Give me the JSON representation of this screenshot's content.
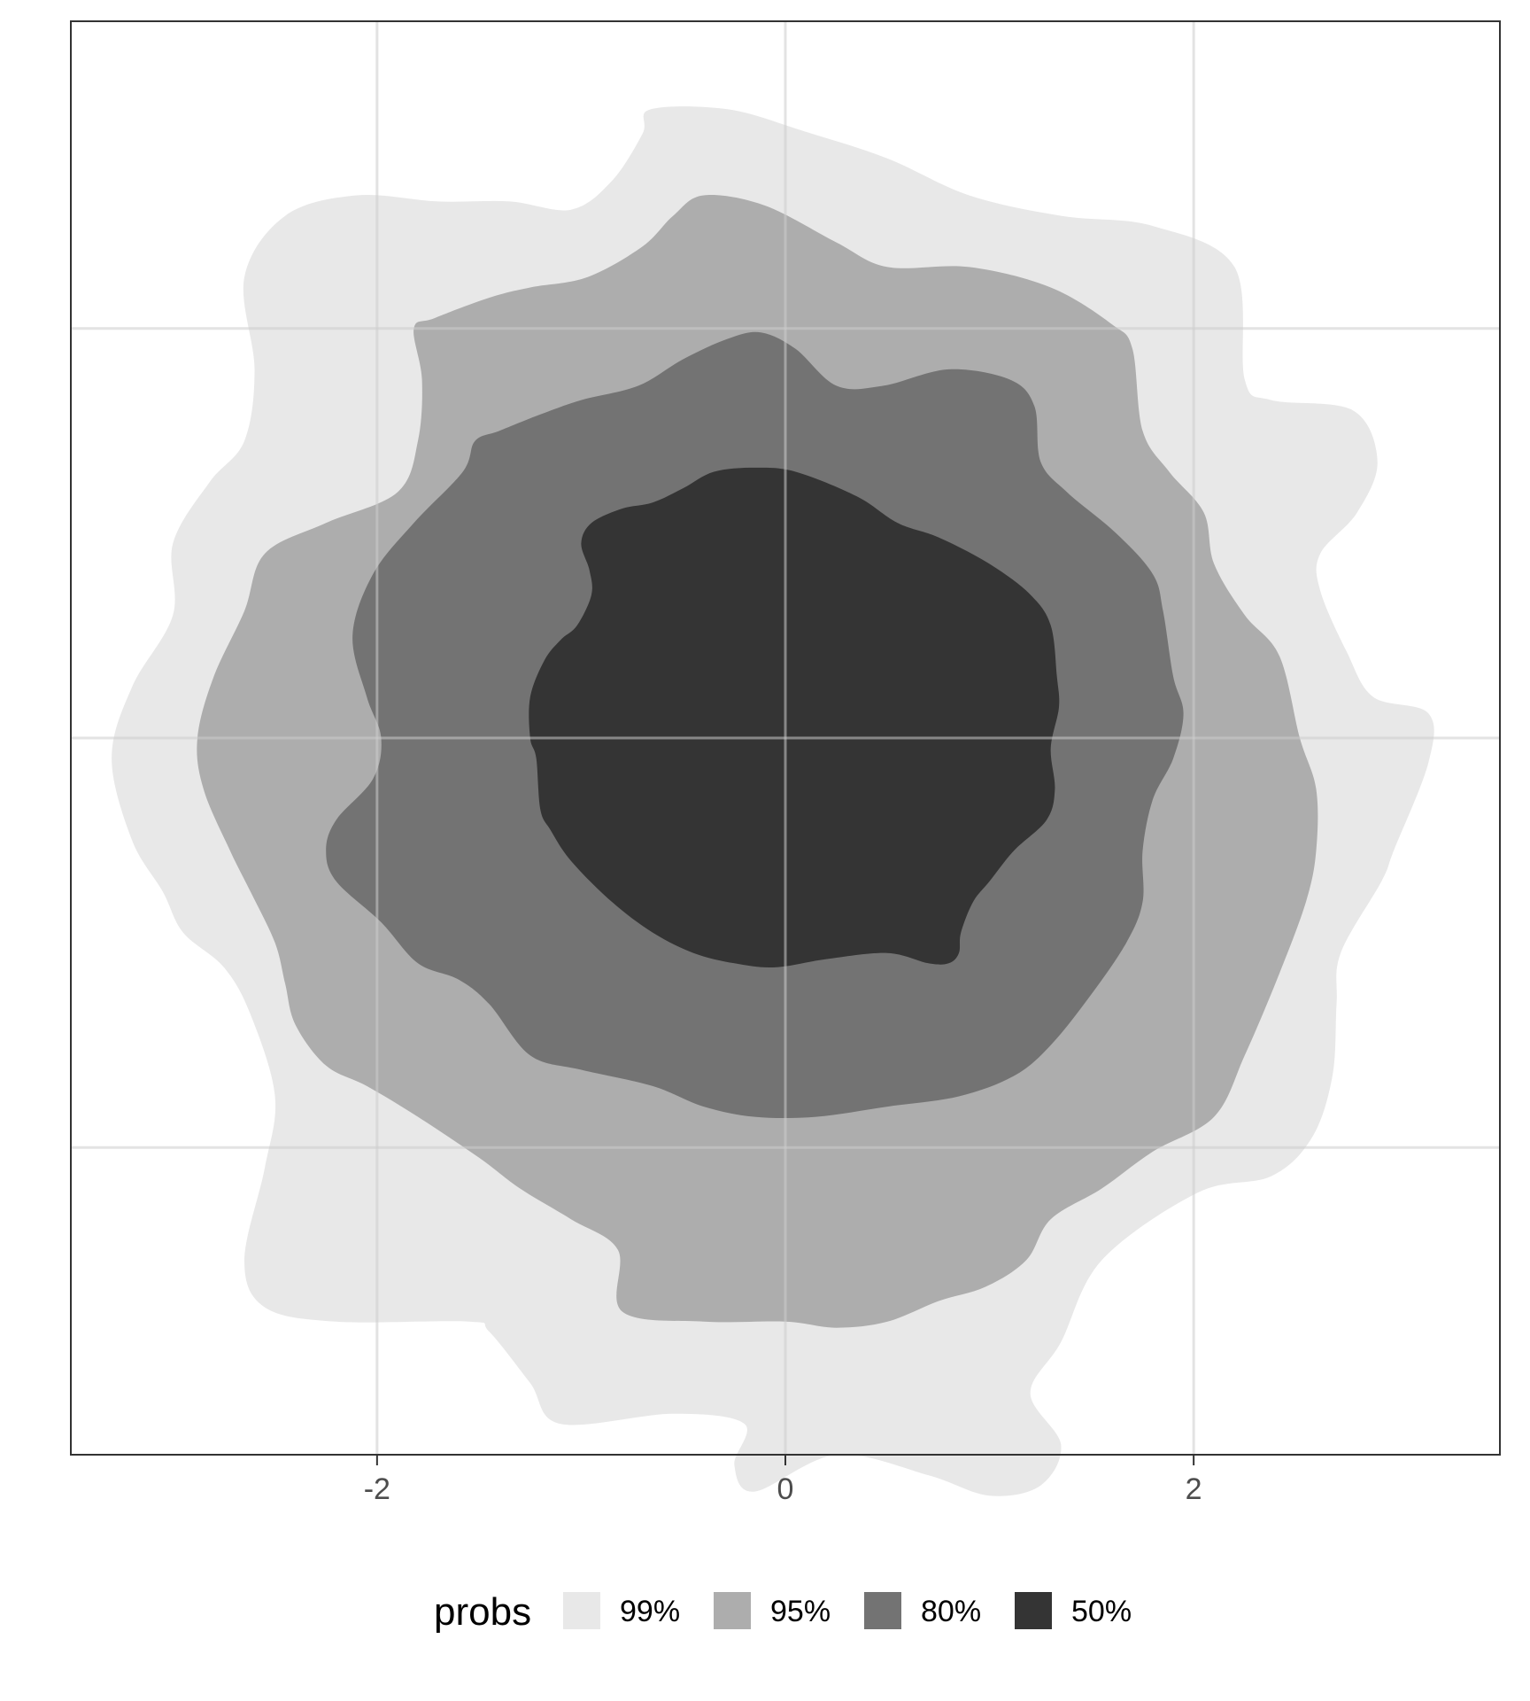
{
  "chart_data": {
    "type": "area",
    "title": "",
    "xlabel": "",
    "ylabel": "",
    "xlim": [
      -3.5,
      3.5
    ],
    "ylim": [
      -3.5,
      3.5
    ],
    "x_ticks": [
      {
        "value": -2,
        "label": "-2"
      },
      {
        "value": 0,
        "label": "0"
      },
      {
        "value": 2,
        "label": "2"
      }
    ],
    "y_gridlines": [
      -2,
      0,
      2
    ],
    "grid": true,
    "legend": {
      "title": "probs",
      "position": "bottom",
      "entries": [
        {
          "label": "99%",
          "color": "#e8e8e8"
        },
        {
          "label": "95%",
          "color": "#adadad"
        },
        {
          "label": "80%",
          "color": "#737373"
        },
        {
          "label": "50%",
          "color": "#343434"
        }
      ]
    },
    "series": [
      {
        "name": "99%",
        "color": "#e8e8e8",
        "polygon": [
          [
            -0.66,
            3.07
          ],
          [
            -0.28,
            3.07
          ],
          [
            0.1,
            2.96
          ],
          [
            0.5,
            2.83
          ],
          [
            0.9,
            2.65
          ],
          [
            1.35,
            2.55
          ],
          [
            1.8,
            2.5
          ],
          [
            2.2,
            2.3
          ],
          [
            2.25,
            1.75
          ],
          [
            2.38,
            1.65
          ],
          [
            2.78,
            1.6
          ],
          [
            2.9,
            1.35
          ],
          [
            2.8,
            1.1
          ],
          [
            2.62,
            0.9
          ],
          [
            2.62,
            0.72
          ],
          [
            2.75,
            0.42
          ],
          [
            2.88,
            0.2
          ],
          [
            3.15,
            0.12
          ],
          [
            3.15,
            -0.12
          ],
          [
            2.98,
            -0.55
          ],
          [
            2.92,
            -0.7
          ],
          [
            2.72,
            -1.05
          ],
          [
            2.7,
            -1.3
          ],
          [
            2.68,
            -1.65
          ],
          [
            2.58,
            -1.95
          ],
          [
            2.38,
            -2.14
          ],
          [
            2.02,
            -2.22
          ],
          [
            1.55,
            -2.55
          ],
          [
            1.35,
            -2.95
          ],
          [
            1.2,
            -3.2
          ],
          [
            1.35,
            -3.45
          ],
          [
            1.25,
            -3.65
          ],
          [
            1.0,
            -3.7
          ],
          [
            0.7,
            -3.6
          ],
          [
            0.25,
            -3.5
          ],
          [
            -0.15,
            -3.68
          ],
          [
            -0.25,
            -3.55
          ],
          [
            -0.2,
            -3.35
          ],
          [
            -0.55,
            -3.3
          ],
          [
            -1.1,
            -3.35
          ],
          [
            -1.25,
            -3.15
          ],
          [
            -1.45,
            -2.9
          ],
          [
            -1.55,
            -2.85
          ],
          [
            -2.2,
            -2.85
          ],
          [
            -2.55,
            -2.78
          ],
          [
            -2.65,
            -2.55
          ],
          [
            -2.55,
            -2.1
          ],
          [
            -2.5,
            -1.75
          ],
          [
            -2.62,
            -1.35
          ],
          [
            -2.75,
            -1.12
          ],
          [
            -2.95,
            -0.95
          ],
          [
            -3.05,
            -0.75
          ],
          [
            -3.2,
            -0.5
          ],
          [
            -3.3,
            -0.1
          ],
          [
            -3.2,
            0.25
          ],
          [
            -3.0,
            0.6
          ],
          [
            -3.0,
            0.95
          ],
          [
            -2.82,
            1.25
          ],
          [
            -2.65,
            1.45
          ],
          [
            -2.6,
            1.8
          ],
          [
            -2.65,
            2.25
          ],
          [
            -2.45,
            2.55
          ],
          [
            -2.1,
            2.65
          ],
          [
            -1.7,
            2.62
          ],
          [
            -1.35,
            2.62
          ],
          [
            -1.05,
            2.58
          ],
          [
            -0.85,
            2.72
          ],
          [
            -0.7,
            2.95
          ]
        ]
      },
      {
        "name": "95%",
        "color": "#adadad",
        "polygon": [
          [
            -0.4,
            2.65
          ],
          [
            -0.1,
            2.6
          ],
          [
            0.25,
            2.42
          ],
          [
            0.5,
            2.3
          ],
          [
            0.9,
            2.3
          ],
          [
            1.3,
            2.2
          ],
          [
            1.6,
            2.02
          ],
          [
            1.7,
            1.9
          ],
          [
            1.75,
            1.5
          ],
          [
            1.88,
            1.3
          ],
          [
            2.05,
            1.1
          ],
          [
            2.1,
            0.85
          ],
          [
            2.25,
            0.6
          ],
          [
            2.42,
            0.4
          ],
          [
            2.52,
            0.0
          ],
          [
            2.6,
            -0.25
          ],
          [
            2.6,
            -0.55
          ],
          [
            2.55,
            -0.8
          ],
          [
            2.42,
            -1.15
          ],
          [
            2.25,
            -1.55
          ],
          [
            2.1,
            -1.85
          ],
          [
            1.8,
            -2.02
          ],
          [
            1.55,
            -2.2
          ],
          [
            1.3,
            -2.35
          ],
          [
            1.18,
            -2.55
          ],
          [
            0.98,
            -2.68
          ],
          [
            0.75,
            -2.75
          ],
          [
            0.5,
            -2.85
          ],
          [
            0.25,
            -2.88
          ],
          [
            0.0,
            -2.85
          ],
          [
            -0.4,
            -2.85
          ],
          [
            -0.8,
            -2.8
          ],
          [
            -0.82,
            -2.5
          ],
          [
            -1.05,
            -2.35
          ],
          [
            -1.3,
            -2.2
          ],
          [
            -1.5,
            -2.05
          ],
          [
            -1.8,
            -1.85
          ],
          [
            -2.05,
            -1.7
          ],
          [
            -2.25,
            -1.6
          ],
          [
            -2.4,
            -1.4
          ],
          [
            -2.45,
            -1.2
          ],
          [
            -2.5,
            -1.0
          ],
          [
            -2.62,
            -0.75
          ],
          [
            -2.72,
            -0.55
          ],
          [
            -2.85,
            -0.25
          ],
          [
            -2.88,
            0.0
          ],
          [
            -2.8,
            0.3
          ],
          [
            -2.65,
            0.62
          ],
          [
            -2.55,
            0.9
          ],
          [
            -2.25,
            1.05
          ],
          [
            -1.9,
            1.2
          ],
          [
            -1.8,
            1.45
          ],
          [
            -1.78,
            1.75
          ],
          [
            -1.82,
            2.0
          ],
          [
            -1.72,
            2.05
          ],
          [
            -1.45,
            2.15
          ],
          [
            -1.25,
            2.2
          ],
          [
            -0.97,
            2.25
          ],
          [
            -0.7,
            2.4
          ],
          [
            -0.55,
            2.55
          ]
        ]
      },
      {
        "name": "80%",
        "color": "#737373",
        "polygon": [
          [
            -0.28,
            1.95
          ],
          [
            -0.12,
            1.98
          ],
          [
            0.05,
            1.9
          ],
          [
            0.25,
            1.72
          ],
          [
            0.48,
            1.72
          ],
          [
            0.8,
            1.8
          ],
          [
            1.1,
            1.75
          ],
          [
            1.22,
            1.62
          ],
          [
            1.25,
            1.35
          ],
          [
            1.38,
            1.2
          ],
          [
            1.62,
            1.0
          ],
          [
            1.8,
            0.8
          ],
          [
            1.85,
            0.62
          ],
          [
            1.9,
            0.3
          ],
          [
            1.95,
            0.12
          ],
          [
            1.9,
            -0.1
          ],
          [
            1.8,
            -0.3
          ],
          [
            1.75,
            -0.55
          ],
          [
            1.75,
            -0.8
          ],
          [
            1.67,
            -1.0
          ],
          [
            1.5,
            -1.25
          ],
          [
            1.3,
            -1.5
          ],
          [
            1.12,
            -1.65
          ],
          [
            0.85,
            -1.75
          ],
          [
            0.5,
            -1.8
          ],
          [
            0.15,
            -1.85
          ],
          [
            -0.15,
            -1.85
          ],
          [
            -0.4,
            -1.8
          ],
          [
            -0.65,
            -1.7
          ],
          [
            -1.0,
            -1.62
          ],
          [
            -1.25,
            -1.55
          ],
          [
            -1.45,
            -1.3
          ],
          [
            -1.6,
            -1.18
          ],
          [
            -1.8,
            -1.1
          ],
          [
            -1.98,
            -0.9
          ],
          [
            -2.2,
            -0.7
          ],
          [
            -2.25,
            -0.55
          ],
          [
            -2.2,
            -0.4
          ],
          [
            -2.02,
            -0.2
          ],
          [
            -1.98,
            0.0
          ],
          [
            -2.05,
            0.2
          ],
          [
            -2.12,
            0.5
          ],
          [
            -2.02,
            0.8
          ],
          [
            -1.82,
            1.05
          ],
          [
            -1.58,
            1.3
          ],
          [
            -1.52,
            1.45
          ],
          [
            -1.4,
            1.5
          ],
          [
            -1.2,
            1.58
          ],
          [
            -1.0,
            1.65
          ],
          [
            -0.72,
            1.72
          ],
          [
            -0.5,
            1.85
          ]
        ]
      },
      {
        "name": "50%",
        "color": "#343434",
        "polygon": [
          [
            -0.35,
            1.3
          ],
          [
            -0.15,
            1.32
          ],
          [
            0.05,
            1.3
          ],
          [
            0.35,
            1.18
          ],
          [
            0.55,
            1.05
          ],
          [
            0.75,
            0.98
          ],
          [
            1.0,
            0.85
          ],
          [
            1.2,
            0.7
          ],
          [
            1.3,
            0.55
          ],
          [
            1.33,
            0.3
          ],
          [
            1.34,
            0.15
          ],
          [
            1.3,
            -0.05
          ],
          [
            1.32,
            -0.25
          ],
          [
            1.28,
            -0.4
          ],
          [
            1.12,
            -0.55
          ],
          [
            1.0,
            -0.7
          ],
          [
            0.92,
            -0.8
          ],
          [
            0.86,
            -0.95
          ],
          [
            0.85,
            -1.05
          ],
          [
            0.8,
            -1.1
          ],
          [
            0.7,
            -1.1
          ],
          [
            0.5,
            -1.05
          ],
          [
            0.2,
            -1.08
          ],
          [
            -0.05,
            -1.12
          ],
          [
            -0.25,
            -1.1
          ],
          [
            -0.45,
            -1.05
          ],
          [
            -0.65,
            -0.95
          ],
          [
            -0.85,
            -0.8
          ],
          [
            -1.05,
            -0.6
          ],
          [
            -1.15,
            -0.45
          ],
          [
            -1.2,
            -0.35
          ],
          [
            -1.22,
            -0.1
          ],
          [
            -1.25,
            0.0
          ],
          [
            -1.25,
            0.2
          ],
          [
            -1.18,
            0.38
          ],
          [
            -1.1,
            0.48
          ],
          [
            -1.02,
            0.55
          ],
          [
            -0.95,
            0.7
          ],
          [
            -0.96,
            0.82
          ],
          [
            -1.0,
            0.95
          ],
          [
            -0.95,
            1.05
          ],
          [
            -0.8,
            1.12
          ],
          [
            -0.65,
            1.15
          ],
          [
            -0.5,
            1.22
          ]
        ]
      }
    ]
  }
}
